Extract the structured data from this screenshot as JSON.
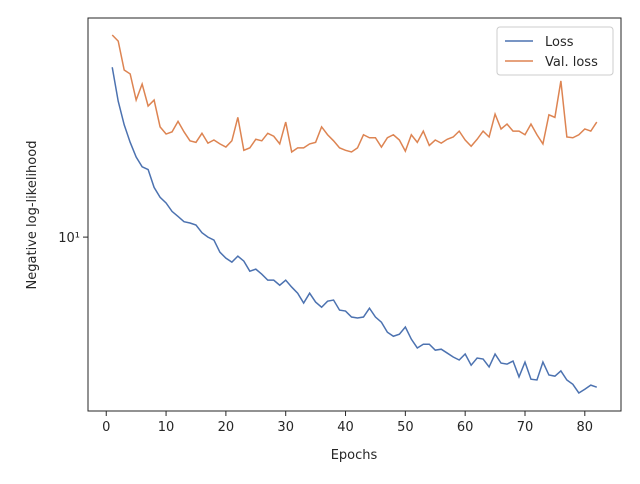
{
  "chart_data": {
    "type": "line",
    "log_y": true,
    "xlabel": "Epochs",
    "ylabel": "Negative log-likelihood",
    "x": [
      1,
      2,
      3,
      4,
      5,
      6,
      7,
      8,
      9,
      10,
      11,
      12,
      13,
      14,
      15,
      16,
      17,
      18,
      19,
      20,
      21,
      22,
      23,
      24,
      25,
      26,
      27,
      28,
      29,
      30,
      31,
      32,
      33,
      34,
      35,
      36,
      37,
      38,
      39,
      40,
      41,
      42,
      43,
      44,
      45,
      46,
      47,
      48,
      49,
      50,
      51,
      52,
      53,
      54,
      55,
      56,
      57,
      58,
      59,
      60,
      61,
      62,
      63,
      64,
      65,
      66,
      67,
      68,
      69,
      70,
      71,
      72,
      73,
      74,
      75,
      76,
      77,
      78,
      79,
      80,
      81,
      82
    ],
    "series": [
      {
        "name": "Loss",
        "color": "#4c72b0",
        "values": [
          31.6,
          25.1,
          21.4,
          19.0,
          17.2,
          16.1,
          15.8,
          14.0,
          13.1,
          12.6,
          11.9,
          11.5,
          11.1,
          11.0,
          10.85,
          10.3,
          10.0,
          9.8,
          9.03,
          8.67,
          8.44,
          8.79,
          8.5,
          7.94,
          8.05,
          7.78,
          7.47,
          7.47,
          7.22,
          7.47,
          7.13,
          6.84,
          6.4,
          6.84,
          6.44,
          6.22,
          6.48,
          6.53,
          6.1,
          6.06,
          5.82,
          5.78,
          5.82,
          6.18,
          5.82,
          5.62,
          5.25,
          5.11,
          5.18,
          5.44,
          5.01,
          4.72,
          4.84,
          4.84,
          4.65,
          4.68,
          4.56,
          4.44,
          4.35,
          4.53,
          4.2,
          4.41,
          4.38,
          4.15,
          4.53,
          4.26,
          4.23,
          4.32,
          3.88,
          4.29,
          3.82,
          3.8,
          4.29,
          3.93,
          3.9,
          4.04,
          3.8,
          3.69,
          3.48,
          3.57,
          3.67,
          3.62
        ]
      },
      {
        "name": "Val. loss",
        "color": "#dd8452",
        "values": [
          39.3,
          37.7,
          31.0,
          30.2,
          25.3,
          28.2,
          24.3,
          25.3,
          21.1,
          20.1,
          20.4,
          21.9,
          20.4,
          19.2,
          19.0,
          20.2,
          18.9,
          19.3,
          18.8,
          18.4,
          19.2,
          22.5,
          18.0,
          18.3,
          19.4,
          19.2,
          20.2,
          19.8,
          18.8,
          21.8,
          17.8,
          18.3,
          18.3,
          18.8,
          19.0,
          21.1,
          20.0,
          19.2,
          18.3,
          18.0,
          17.8,
          18.3,
          20.0,
          19.6,
          19.6,
          18.4,
          19.6,
          20.0,
          19.3,
          17.9,
          20.0,
          19.0,
          20.5,
          18.6,
          19.3,
          18.9,
          19.4,
          19.7,
          20.5,
          19.3,
          18.5,
          19.4,
          20.5,
          19.7,
          23.0,
          20.8,
          21.5,
          20.5,
          20.5,
          20.0,
          21.5,
          20.0,
          18.8,
          22.9,
          22.5,
          28.8,
          19.7,
          19.6,
          20.0,
          20.8,
          20.5,
          21.8
        ]
      }
    ],
    "xlim": [
      -3.05,
      86.05
    ],
    "xticks": [
      0,
      10,
      20,
      30,
      40,
      50,
      60,
      70,
      80
    ],
    "ylim": [
      3.08,
      44.1
    ],
    "yticks": [
      {
        "value": 10,
        "label": "10¹"
      }
    ],
    "legend": "upper right"
  }
}
